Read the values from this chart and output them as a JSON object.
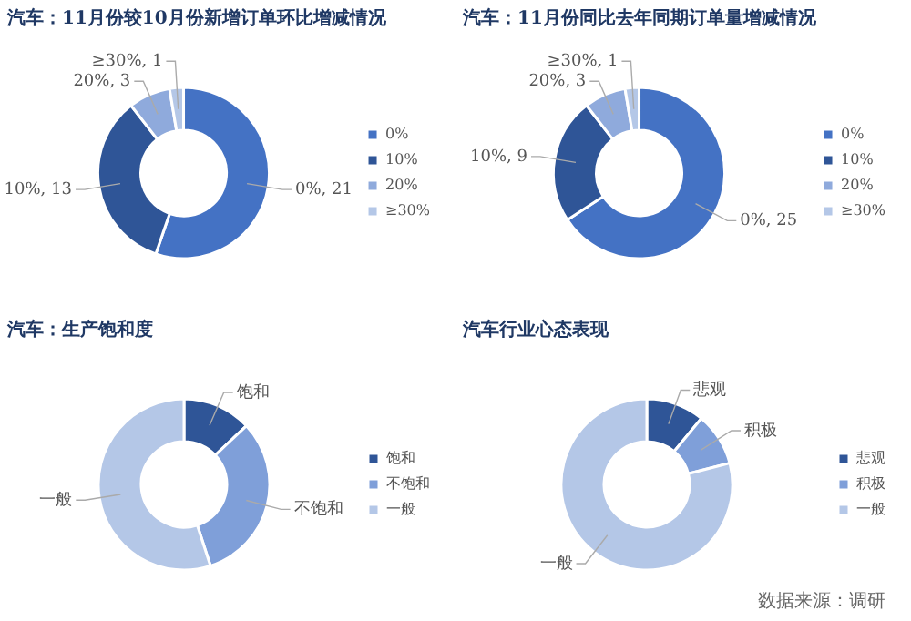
{
  "chart_data": [
    {
      "type": "donut",
      "title": "汽车：11月份较10月份新增订单环比增减情况",
      "categories": [
        "0%",
        "10%",
        "20%",
        "≥30%"
      ],
      "values": [
        21,
        13,
        3,
        1
      ],
      "colors": [
        "#4472c4",
        "#2f5597",
        "#8faadc",
        "#b4c7e7"
      ],
      "value_labels": [
        "0%, 21",
        "10%, 13",
        "20%, 3",
        "≥30%, 1"
      ],
      "legend": "right"
    },
    {
      "type": "donut",
      "title": "汽车：11月份同比去年同期订单量增减情况",
      "categories": [
        "0%",
        "10%",
        "20%",
        "≥30%"
      ],
      "values": [
        25,
        9,
        3,
        1
      ],
      "colors": [
        "#4472c4",
        "#2f5597",
        "#8faadc",
        "#b4c7e7"
      ],
      "value_labels": [
        "0%, 25",
        "10%, 9",
        "20%, 3",
        "≥30%, 1"
      ],
      "legend": "right"
    },
    {
      "type": "donut",
      "title": "汽车：生产饱和度",
      "categories": [
        "饱和",
        "不饱和",
        "一般"
      ],
      "values": [
        13,
        32,
        55
      ],
      "colors": [
        "#2f5597",
        "#7f9fd9",
        "#b4c7e7"
      ],
      "value_labels": [
        "饱和",
        "不饱和",
        "一般"
      ],
      "legend": "right"
    },
    {
      "type": "donut",
      "title": "汽车行业心态表现",
      "categories": [
        "悲观",
        "积极",
        "一般"
      ],
      "values": [
        11,
        10,
        79
      ],
      "colors": [
        "#2f5597",
        "#7f9fd9",
        "#b4c7e7"
      ],
      "value_labels": [
        "悲观",
        "积极",
        "一般"
      ],
      "legend": "right",
      "annotations": [
        "数据来源：调研"
      ]
    }
  ]
}
